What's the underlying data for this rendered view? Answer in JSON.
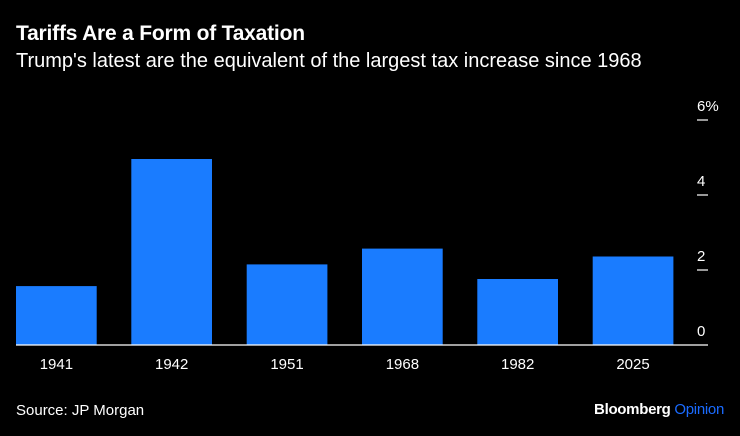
{
  "title": "Tariffs Are a Form of Taxation",
  "subtitle": "Trump's latest are the equivalent of the largest tax increase since 1968",
  "source": "Source: JP Morgan",
  "brand": {
    "name": "Bloomberg",
    "section": "Opinion",
    "section_color": "#1a6bff"
  },
  "colors": {
    "background": "#000000",
    "bar": "#1a7cff",
    "axis": "#ffffff",
    "text": "#ffffff"
  },
  "chart_data": {
    "type": "bar",
    "title": "Tariffs Are a Form of Taxation",
    "subtitle": "Trump's latest are the equivalent of the largest tax increase since 1968",
    "categories": [
      "1941",
      "1942",
      "1951",
      "1968",
      "1982",
      "2025"
    ],
    "values": [
      1.57,
      4.96,
      2.15,
      2.57,
      1.76,
      2.36
    ],
    "ylim": [
      0,
      6
    ],
    "yticks": [
      0,
      2,
      4,
      6
    ],
    "ytick_labels": [
      "0",
      "2",
      "4",
      "6%"
    ],
    "yaxis_position": "right",
    "grid": false,
    "legend": "none"
  }
}
